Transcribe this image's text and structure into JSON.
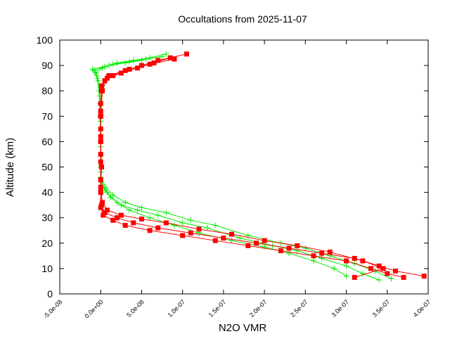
{
  "chart_data": {
    "type": "line",
    "title": "Occultations from 2025-11-07",
    "xlabel": "N2O VMR",
    "ylabel": "Altitude (km)",
    "xlim": [
      -5e-08,
      4e-07
    ],
    "ylim": [
      0,
      100
    ],
    "xticks": [
      "-5.0e-08",
      "0.0e+00",
      "5.0e-08",
      "1.0e-07",
      "1.5e-07",
      "2.0e-07",
      "2.5e-07",
      "3.0e-07",
      "3.5e-07",
      "4.0e-07"
    ],
    "yticks": [
      "0",
      "10",
      "20",
      "30",
      "40",
      "50",
      "60",
      "70",
      "80",
      "90",
      "100"
    ],
    "grid": false,
    "series": [
      {
        "color": "#00ee00",
        "marker": "plus",
        "profiles": [
          [
            [
              3.4e-07,
              5.5
            ],
            [
              3.2e-07,
              8
            ],
            [
              3e-07,
              11
            ],
            [
              2.7e-07,
              14
            ],
            [
              2.4e-07,
              17
            ],
            [
              2.1e-07,
              19
            ],
            [
              1.7e-07,
              22
            ],
            [
              1.3e-07,
              26
            ],
            [
              1e-07,
              28
            ],
            [
              7e-08,
              31
            ],
            [
              4.5e-08,
              33
            ],
            [
              2.5e-08,
              35
            ],
            [
              1.2e-08,
              38
            ],
            [
              5e-09,
              41
            ],
            [
              1e-09,
              44
            ],
            [
              0,
              50
            ],
            [
              0,
              60
            ],
            [
              -1e-09,
              70
            ],
            [
              -2e-09,
              80
            ],
            [
              -5e-09,
              86
            ],
            [
              -8e-09,
              88
            ],
            [
              5e-09,
              89.5
            ],
            [
              2e-08,
              91
            ],
            [
              4e-08,
              92
            ],
            [
              6e-08,
              93
            ],
            [
              8e-08,
              94.5
            ]
          ],
          [
            [
              3.55e-07,
              6
            ],
            [
              3.35e-07,
              9
            ],
            [
              3.1e-07,
              12
            ],
            [
              2.8e-07,
              15
            ],
            [
              2.5e-07,
              18
            ],
            [
              2.2e-07,
              20
            ],
            [
              1.8e-07,
              23
            ],
            [
              1.4e-07,
              27
            ],
            [
              1.1e-07,
              29
            ],
            [
              8e-08,
              32
            ],
            [
              5e-08,
              34
            ],
            [
              3e-08,
              36
            ],
            [
              1.5e-08,
              39
            ],
            [
              6e-09,
              42
            ],
            [
              0,
              46
            ],
            [
              0,
              55
            ],
            [
              0,
              65
            ],
            [
              -1e-09,
              75
            ],
            [
              -3e-09,
              84
            ],
            [
              -6e-09,
              87
            ],
            [
              2e-09,
              89
            ],
            [
              1.5e-08,
              90.5
            ],
            [
              3.5e-08,
              91.5
            ],
            [
              5.5e-08,
              92.5
            ],
            [
              7.5e-08,
              93.5
            ]
          ],
          [
            [
              3e-07,
              7
            ],
            [
              2.85e-07,
              10
            ],
            [
              2.6e-07,
              13
            ],
            [
              2.3e-07,
              16
            ],
            [
              2e-07,
              18.5
            ],
            [
              1.6e-07,
              21
            ],
            [
              1.2e-07,
              24
            ],
            [
              9e-08,
              27
            ],
            [
              6e-08,
              30
            ],
            [
              3.5e-08,
              33
            ],
            [
              2e-08,
              36
            ],
            [
              8e-09,
              40
            ],
            [
              2e-09,
              43
            ],
            [
              0,
              48
            ],
            [
              0,
              58
            ],
            [
              0,
              68
            ],
            [
              -1e-09,
              78
            ],
            [
              -4e-09,
              85
            ],
            [
              -1e-08,
              88.5
            ],
            [
              1e-08,
              90
            ],
            [
              3e-08,
              91
            ],
            [
              5e-08,
              92
            ]
          ]
        ]
      },
      {
        "color": "#ff0000",
        "marker": "square",
        "profiles": [
          [
            [
              3.95e-07,
              7
            ],
            [
              3.6e-07,
              9
            ],
            [
              3.4e-07,
              11
            ],
            [
              3.1e-07,
              14
            ],
            [
              2.7e-07,
              16
            ],
            [
              2.3e-07,
              18
            ],
            [
              1.9e-07,
              20
            ],
            [
              1.5e-07,
              22
            ],
            [
              1.1e-07,
              24
            ],
            [
              7e-08,
              26
            ],
            [
              4e-08,
              28
            ],
            [
              2e-08,
              30
            ],
            [
              5e-09,
              32
            ],
            [
              1e-09,
              35
            ],
            [
              0,
              40
            ],
            [
              0,
              45
            ],
            [
              1e-09,
              50
            ],
            [
              0,
              55
            ],
            [
              0,
              60
            ],
            [
              0,
              65
            ],
            [
              0,
              70
            ],
            [
              0,
              75
            ],
            [
              1e-09,
              80
            ],
            [
              5e-09,
              84
            ],
            [
              1.5e-08,
              86
            ],
            [
              3e-08,
              88
            ],
            [
              5e-08,
              90
            ],
            [
              7e-08,
              92
            ],
            [
              1.05e-07,
              94.5
            ]
          ],
          [
            [
              3.7e-07,
              6.5
            ],
            [
              3.5e-07,
              8
            ],
            [
              3.3e-07,
              10
            ],
            [
              3e-07,
              13
            ],
            [
              2.6e-07,
              15
            ],
            [
              2.2e-07,
              17
            ],
            [
              1.8e-07,
              19
            ],
            [
              1.4e-07,
              21
            ],
            [
              1e-07,
              23
            ],
            [
              6e-08,
              25
            ],
            [
              3e-08,
              27
            ],
            [
              1.5e-08,
              29
            ],
            [
              3e-09,
              31
            ],
            [
              0,
              34
            ],
            [
              0,
              40
            ],
            [
              1e-09,
              50
            ],
            [
              0,
              60
            ],
            [
              0,
              70
            ],
            [
              2e-09,
              80
            ],
            [
              8e-09,
              85
            ],
            [
              2.5e-08,
              87
            ],
            [
              4.5e-08,
              89
            ],
            [
              6.5e-08,
              91
            ],
            [
              8.5e-08,
              93
            ]
          ],
          [
            [
              3.1e-07,
              6.5
            ],
            [
              3.45e-07,
              10
            ],
            [
              3.2e-07,
              13
            ],
            [
              2.8e-07,
              16.5
            ],
            [
              2.4e-07,
              19
            ],
            [
              2e-07,
              21
            ],
            [
              1.6e-07,
              23.5
            ],
            [
              1.2e-07,
              25.5
            ],
            [
              8e-08,
              28
            ],
            [
              5e-08,
              29.5
            ],
            [
              2.5e-08,
              31
            ],
            [
              8e-09,
              33
            ],
            [
              2e-09,
              36
            ],
            [
              0,
              42
            ],
            [
              0,
              52
            ],
            [
              0,
              62
            ],
            [
              0,
              72
            ],
            [
              1e-09,
              82
            ],
            [
              1e-08,
              86
            ],
            [
              3.5e-08,
              88.5
            ],
            [
              6e-08,
              90.5
            ],
            [
              9e-08,
              92.5
            ]
          ]
        ]
      }
    ]
  }
}
